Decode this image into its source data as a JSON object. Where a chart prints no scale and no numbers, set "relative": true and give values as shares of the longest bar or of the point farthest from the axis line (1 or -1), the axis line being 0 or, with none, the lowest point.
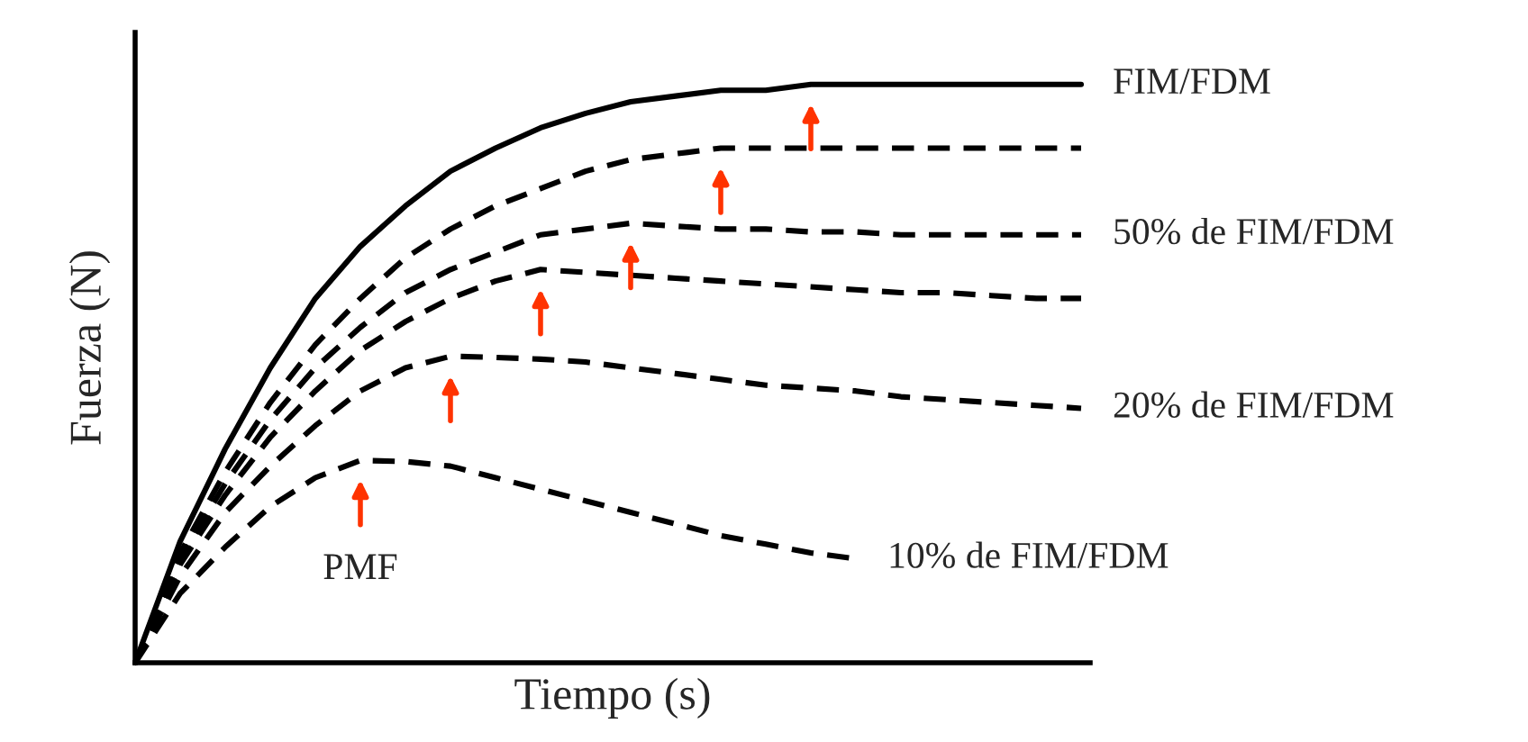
{
  "chart_data": {
    "type": "line",
    "relative": true,
    "xlabel": "Tiempo (s)",
    "ylabel": "Fuerza (N)",
    "categories": [
      null,
      null,
      null,
      null,
      null,
      null,
      null,
      null,
      null,
      null,
      null,
      null,
      null,
      null,
      null,
      null,
      null,
      null,
      null,
      null,
      null,
      null
    ],
    "series": [
      {
        "name": "FIM/FDM",
        "color": "#000000",
        "line_style": "solid",
        "values": [
          0,
          0.21,
          0.37,
          0.51,
          0.63,
          0.72,
          0.79,
          0.85,
          0.89,
          0.925,
          0.95,
          0.97,
          0.98,
          0.99,
          0.99,
          1.0,
          1.0,
          1.0,
          1.0,
          1.0,
          1.0,
          1.0
        ]
      },
      {
        "color": "#000000",
        "line_style": "dashed",
        "values": [
          0,
          0.19,
          0.33,
          0.45,
          0.55,
          0.63,
          0.7,
          0.75,
          0.79,
          0.82,
          0.85,
          0.87,
          0.88,
          0.89,
          0.89,
          0.89,
          0.89,
          0.89,
          0.89,
          0.89,
          0.89,
          0.89
        ]
      },
      {
        "name": "50% de FIM/FDM",
        "color": "#000000",
        "line_style": "dashed",
        "values": [
          0,
          0.18,
          0.31,
          0.42,
          0.51,
          0.58,
          0.64,
          0.68,
          0.71,
          0.74,
          0.75,
          0.76,
          0.755,
          0.75,
          0.75,
          0.745,
          0.745,
          0.74,
          0.74,
          0.74,
          0.74,
          0.74
        ]
      },
      {
        "color": "#000000",
        "line_style": "dashed",
        "values": [
          0,
          0.17,
          0.29,
          0.39,
          0.47,
          0.54,
          0.59,
          0.63,
          0.66,
          0.68,
          0.675,
          0.67,
          0.665,
          0.66,
          0.655,
          0.65,
          0.645,
          0.64,
          0.64,
          0.635,
          0.63,
          0.63
        ]
      },
      {
        "name": "20% de FIM/FDM",
        "color": "#000000",
        "line_style": "dashed",
        "values": [
          0,
          0.15,
          0.26,
          0.34,
          0.41,
          0.47,
          0.51,
          0.53,
          0.528,
          0.525,
          0.52,
          0.51,
          0.5,
          0.49,
          0.48,
          0.475,
          0.47,
          0.46,
          0.455,
          0.45,
          0.445,
          0.44
        ]
      },
      {
        "name": "10% de FIM/FDM",
        "color": "#000000",
        "line_style": "dashed",
        "values": [
          0,
          0.12,
          0.2,
          0.27,
          0.32,
          0.35,
          0.348,
          0.34,
          0.32,
          0.3,
          0.28,
          0.26,
          0.24,
          0.22,
          0.205,
          0.19,
          0.18,
          null,
          null,
          null,
          null,
          null
        ]
      }
    ],
    "annotations": [
      "PMF"
    ],
    "legend": false
  }
}
